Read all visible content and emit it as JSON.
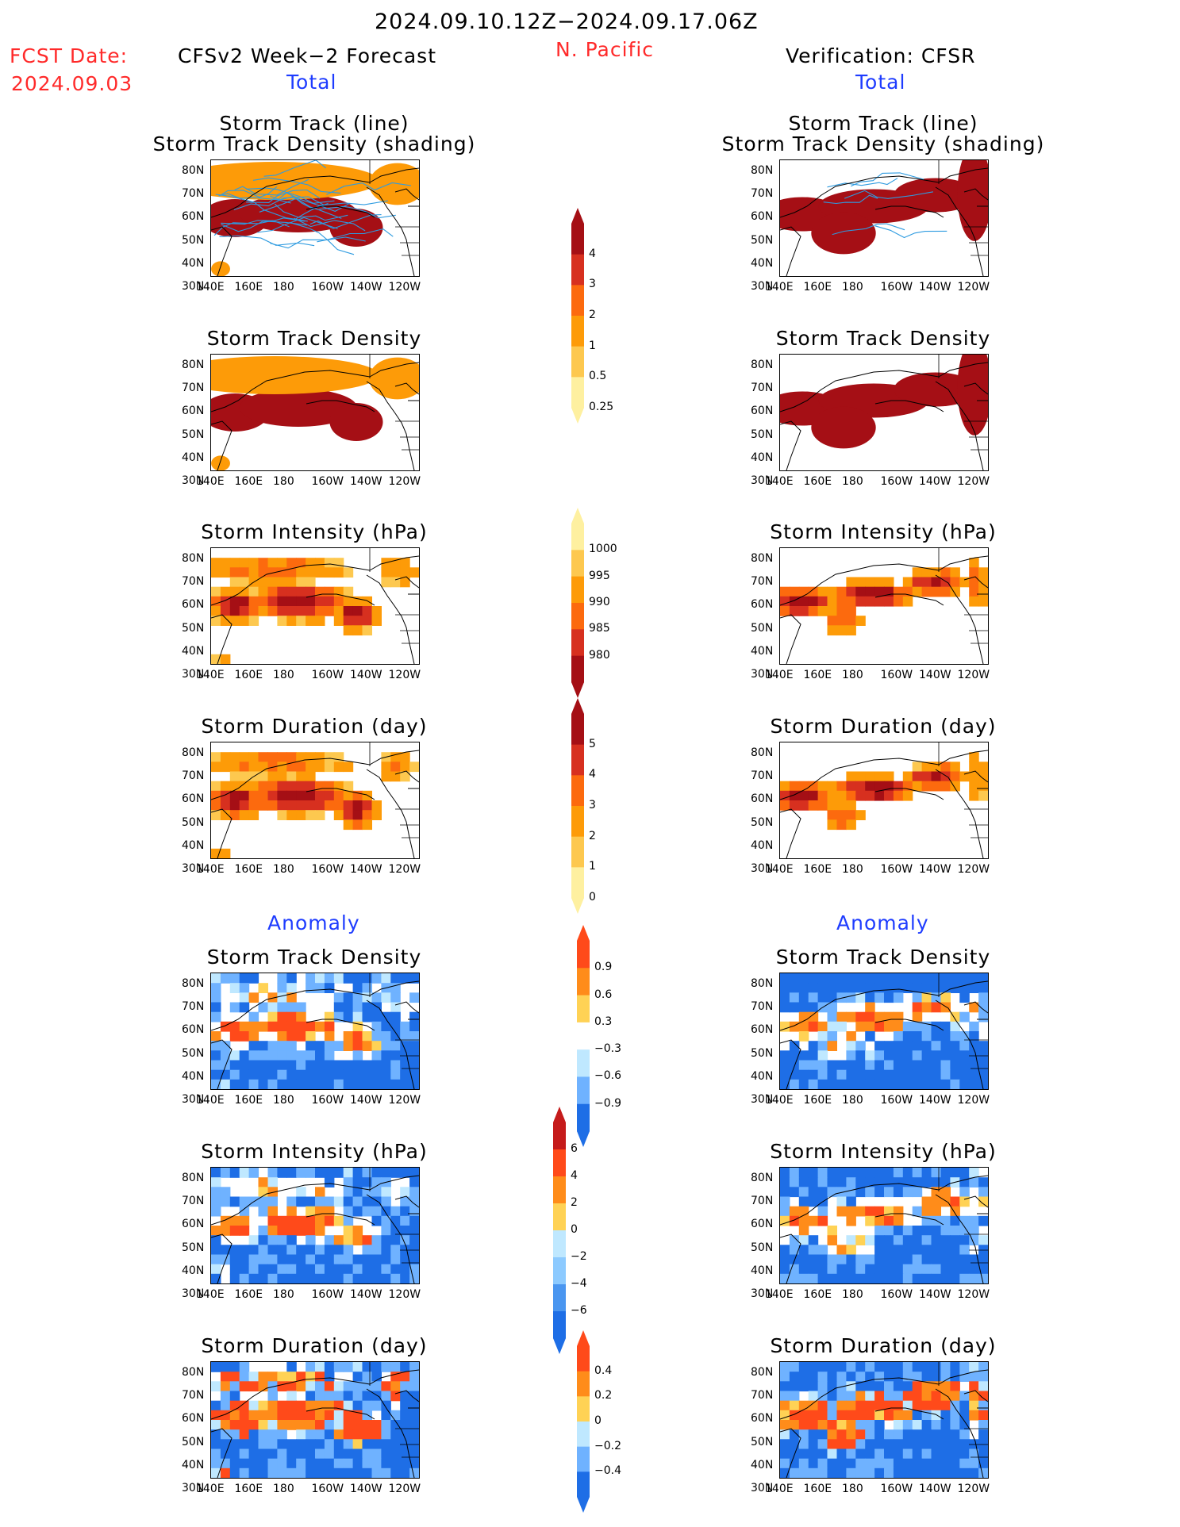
{
  "header": {
    "date_range": "2024.09.10.12Z−2024.09.17.06Z",
    "fcst_label": "FCST Date:",
    "fcst_date": "2024.09.03",
    "left_title": "CFSv2 Week−2 Forecast",
    "region": "N. Pacific",
    "right_title": "Verification: CFSR",
    "total_left": "Total",
    "total_right": "Total",
    "anomaly_left": "Anomaly",
    "anomaly_right": "Anomaly"
  },
  "axes": {
    "lat_ticks": [
      "80N",
      "70N",
      "60N",
      "50N",
      "40N",
      "30N"
    ],
    "lon_ticks": [
      "140E",
      "160E",
      "180",
      "160W",
      "140W",
      "120W"
    ]
  },
  "panels": [
    {
      "id": "fc-track",
      "title1": "Storm Track (line)",
      "title2": "Storm Track Density (shading)",
      "field": "density",
      "lines": true
    },
    {
      "id": "fc-density",
      "title1": "Storm Track Density",
      "title2": "",
      "field": "density",
      "lines": false
    },
    {
      "id": "fc-intensity",
      "title1": "Storm Intensity (hPa)",
      "title2": "",
      "field": "intensity",
      "lines": false
    },
    {
      "id": "fc-duration",
      "title1": "Storm Duration (day)",
      "title2": "",
      "field": "duration",
      "lines": false
    },
    {
      "id": "fc-anom-density",
      "title1": "Storm Track Density",
      "title2": "",
      "field": "anom",
      "lines": false
    },
    {
      "id": "fc-anom-intensity",
      "title1": "Storm Intensity (hPa)",
      "title2": "",
      "field": "anomi",
      "lines": false
    },
    {
      "id": "fc-anom-duration",
      "title1": "Storm Duration (day)",
      "title2": "",
      "field": "anomd",
      "lines": false
    },
    {
      "id": "vr-track",
      "title1": "Storm Track (line)",
      "title2": "Storm Track Density (shading)",
      "field": "density",
      "lines": true
    },
    {
      "id": "vr-density",
      "title1": "Storm Track Density",
      "title2": "",
      "field": "density",
      "lines": false
    },
    {
      "id": "vr-intensity",
      "title1": "Storm Intensity (hPa)",
      "title2": "",
      "field": "intensity",
      "lines": false
    },
    {
      "id": "vr-duration",
      "title1": "Storm Duration (day)",
      "title2": "",
      "field": "duration",
      "lines": false
    },
    {
      "id": "vr-anom-density",
      "title1": "Storm Track Density",
      "title2": "",
      "field": "anom",
      "lines": false
    },
    {
      "id": "vr-anom-intensity",
      "title1": "Storm Intensity (hPa)",
      "title2": "",
      "field": "anomi",
      "lines": false
    },
    {
      "id": "vr-anom-duration",
      "title1": "Storm Duration (day)",
      "title2": "",
      "field": "anomd",
      "lines": false
    }
  ],
  "colorbars": [
    {
      "id": "cb-density",
      "labels": [
        "4",
        "3",
        "2",
        "1",
        "0.5",
        "0.25"
      ],
      "colors": [
        "#a50f15",
        "#d7301f",
        "#fc6a0e",
        "#fd9b08",
        "#fdc84f",
        "#fef0a0"
      ]
    },
    {
      "id": "cb-intensity",
      "labels": [
        "1000",
        "995",
        "990",
        "985",
        "980"
      ],
      "colors": [
        "#fef0a0",
        "#fdc84f",
        "#fd9b08",
        "#fc6a0e",
        "#d7301f",
        "#a50f15"
      ]
    },
    {
      "id": "cb-duration",
      "labels": [
        "5",
        "4",
        "3",
        "2",
        "1",
        "0"
      ],
      "colors": [
        "#a50f15",
        "#d7301f",
        "#fc6a0e",
        "#fd9b08",
        "#fdc84f",
        "#fef0a0"
      ]
    },
    {
      "id": "cb-anom-density",
      "labels": [
        "0.9",
        "0.6",
        "0.3",
        "−0.3",
        "−0.6",
        "−0.9"
      ],
      "colors": [
        "#ff4a1a",
        "#ff8c1a",
        "#ffd255",
        "#ffffff",
        "#bfe8ff",
        "#6fb2ff",
        "#1e6ee6"
      ]
    },
    {
      "id": "cb-anom-intensity",
      "labels": [
        "6",
        "4",
        "2",
        "0",
        "−2",
        "−4",
        "−6"
      ],
      "colors": [
        "#c51b1b",
        "#ff4a1a",
        "#ff8c1a",
        "#ffd255",
        "#bfe8ff",
        "#8ccaff",
        "#4a96f0",
        "#1e6ee6"
      ]
    },
    {
      "id": "cb-anom-duration",
      "labels": [
        "0.4",
        "0.2",
        "0",
        "−0.2",
        "−0.4"
      ],
      "colors": [
        "#ff4a1a",
        "#ff8c1a",
        "#ffd255",
        "#bfe8ff",
        "#6fb2ff",
        "#1e6ee6"
      ]
    }
  ],
  "colors": {
    "red": "#ff2a2a",
    "blue": "#1e3cff",
    "track_line": "#2e9be0"
  }
}
